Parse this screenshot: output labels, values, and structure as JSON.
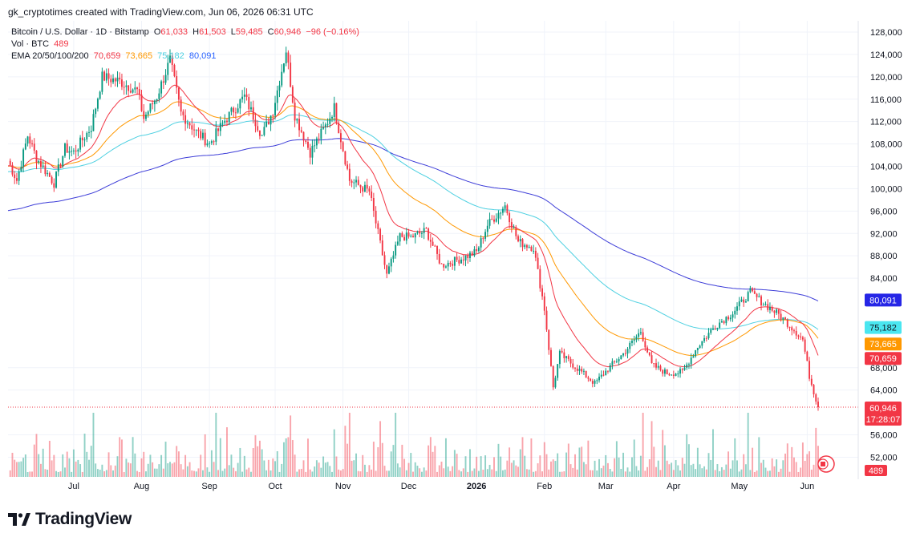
{
  "credit": "gk_cryptotimes created with TradingView.com, Jun 06, 2026 06:31 UTC",
  "legend": {
    "symbol": "Bitcoin / U.S. Dollar · 1D · Bitstamp",
    "open_label": "O",
    "open": "61,033",
    "high_label": "H",
    "high": "61,503",
    "low_label": "L",
    "low": "59,485",
    "close_label": "C",
    "close": "60,946",
    "change": "−96 (−0.16%)",
    "vol_label": "Vol · BTC",
    "vol": "489",
    "ema_label": "EMA 20/50/100/200",
    "ema20": "70,659",
    "ema50": "73,665",
    "ema100": "75,182",
    "ema200": "80,091"
  },
  "price_tags": {
    "ema200": "80,091",
    "ema100": "75,182",
    "ema50": "73,665",
    "ema20": "70,659",
    "last": "60,946",
    "countdown": "17:28:07",
    "vol": "489"
  },
  "logo_text": "TradingView",
  "colors": {
    "up": "#089981",
    "down": "#f23645",
    "ema20": "#f23645",
    "ema50": "#ff9800",
    "ema100": "#4dd0e1",
    "ema200": "#3d3dd8",
    "grid": "#f0f3fa",
    "tag_ema200": "#2626e6",
    "tag_ema100": "#4ae6f0",
    "tag_ema50": "#ff9800",
    "tag_ema20": "#f23645",
    "tag_last": "#f23645"
  },
  "chart_data": {
    "type": "candlestick",
    "symbol": "BTC/USD",
    "timeframe": "1D",
    "y_axis_ticks": [
      "128,000",
      "124,000",
      "120,000",
      "116,000",
      "112,000",
      "108,000",
      "104,000",
      "100,000",
      "96,000",
      "92,000",
      "88,000",
      "84,000",
      "68,000",
      "64,000",
      "56,000",
      "52,000"
    ],
    "x_axis_ticks": [
      "Jul",
      "Aug",
      "Sep",
      "Oct",
      "Nov",
      "Dec",
      "2026",
      "Feb",
      "Mar",
      "Apr",
      "May",
      "Jun"
    ],
    "ylim": [
      48000,
      130500
    ],
    "close_path": [
      {
        "date": "2025-06-01",
        "close": 105000
      },
      {
        "date": "2025-06-05",
        "close": 101500
      },
      {
        "date": "2025-06-10",
        "close": 109500
      },
      {
        "date": "2025-06-14",
        "close": 105500
      },
      {
        "date": "2025-06-22",
        "close": 101000
      },
      {
        "date": "2025-06-27",
        "close": 107200
      },
      {
        "date": "2025-07-01",
        "close": 106500
      },
      {
        "date": "2025-07-09",
        "close": 111000
      },
      {
        "date": "2025-07-14",
        "close": 120000
      },
      {
        "date": "2025-07-22",
        "close": 119200
      },
      {
        "date": "2025-07-30",
        "close": 117500
      },
      {
        "date": "2025-08-02",
        "close": 112600
      },
      {
        "date": "2025-08-08",
        "close": 116500
      },
      {
        "date": "2025-08-14",
        "close": 123000
      },
      {
        "date": "2025-08-19",
        "close": 113500
      },
      {
        "date": "2025-08-26",
        "close": 110200
      },
      {
        "date": "2025-09-01",
        "close": 108000
      },
      {
        "date": "2025-09-08",
        "close": 112200
      },
      {
        "date": "2025-09-17",
        "close": 116500
      },
      {
        "date": "2025-09-25",
        "close": 109500
      },
      {
        "date": "2025-09-30",
        "close": 114000
      },
      {
        "date": "2025-10-06",
        "close": 124800
      },
      {
        "date": "2025-10-10",
        "close": 113200
      },
      {
        "date": "2025-10-17",
        "close": 106500
      },
      {
        "date": "2025-10-24",
        "close": 111200
      },
      {
        "date": "2025-10-28",
        "close": 114500
      },
      {
        "date": "2025-11-04",
        "close": 101500
      },
      {
        "date": "2025-11-13",
        "close": 99500
      },
      {
        "date": "2025-11-21",
        "close": 84500
      },
      {
        "date": "2025-11-27",
        "close": 91500
      },
      {
        "date": "2025-12-02",
        "close": 91300
      },
      {
        "date": "2025-12-09",
        "close": 92500
      },
      {
        "date": "2025-12-16",
        "close": 86300
      },
      {
        "date": "2025-12-25",
        "close": 87500
      },
      {
        "date": "2026-01-01",
        "close": 88700
      },
      {
        "date": "2026-01-06",
        "close": 93500
      },
      {
        "date": "2026-01-14",
        "close": 97000
      },
      {
        "date": "2026-01-20",
        "close": 90500
      },
      {
        "date": "2026-01-27",
        "close": 89500
      },
      {
        "date": "2026-02-01",
        "close": 78500
      },
      {
        "date": "2026-02-05",
        "close": 64500
      },
      {
        "date": "2026-02-08",
        "close": 70500
      },
      {
        "date": "2026-02-15",
        "close": 68200
      },
      {
        "date": "2026-02-24",
        "close": 65200
      },
      {
        "date": "2026-03-03",
        "close": 68200
      },
      {
        "date": "2026-03-09",
        "close": 70500
      },
      {
        "date": "2026-03-17",
        "close": 74500
      },
      {
        "date": "2026-03-22",
        "close": 68500
      },
      {
        "date": "2026-03-29",
        "close": 67000
      },
      {
        "date": "2026-04-05",
        "close": 67200
      },
      {
        "date": "2026-04-12",
        "close": 71800
      },
      {
        "date": "2026-04-20",
        "close": 75500
      },
      {
        "date": "2026-04-28",
        "close": 77800
      },
      {
        "date": "2026-05-06",
        "close": 81500
      },
      {
        "date": "2026-05-12",
        "close": 79500
      },
      {
        "date": "2026-05-19",
        "close": 77500
      },
      {
        "date": "2026-05-26",
        "close": 74800
      },
      {
        "date": "2026-05-30",
        "close": 73000
      },
      {
        "date": "2026-06-02",
        "close": 66500
      },
      {
        "date": "2026-06-06",
        "close": 60946
      }
    ],
    "series": [
      {
        "name": "EMA 20",
        "last": 70659
      },
      {
        "name": "EMA 50",
        "last": 73665
      },
      {
        "name": "EMA 100",
        "last": 75182
      },
      {
        "name": "EMA 200",
        "last": 80091
      }
    ],
    "volume_last": 489,
    "grid": true
  }
}
